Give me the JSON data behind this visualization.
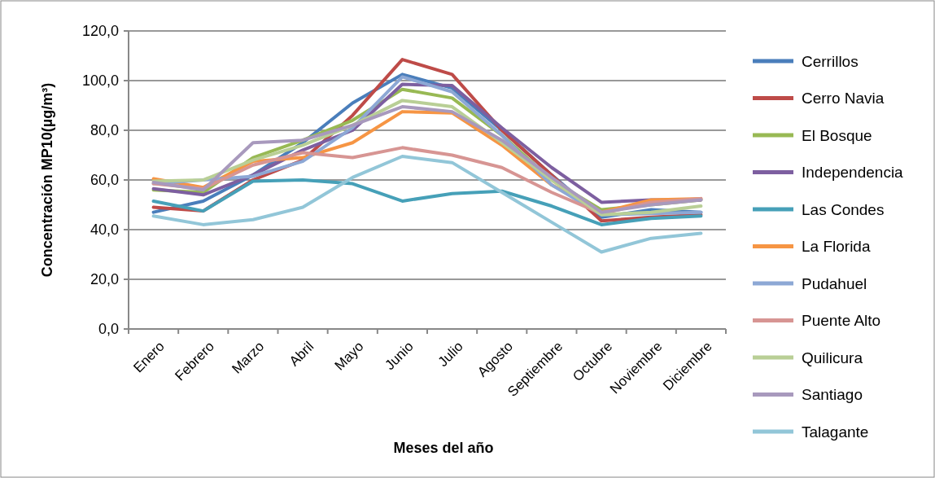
{
  "chart_data": {
    "type": "line",
    "xlabel": "Meses del año",
    "ylabel": "Concentración MP10(µg/m³)",
    "categories": [
      "Enero",
      "Febrero",
      "Marzo",
      "Abril",
      "Mayo",
      "Junio",
      "Julio",
      "Agosto",
      "Septiembre",
      "Octubre",
      "Noviembre",
      "Diciembre"
    ],
    "ylim": [
      0,
      120
    ],
    "yticks": [
      {
        "value": 0,
        "label": "0,0"
      },
      {
        "value": 20,
        "label": "20,0"
      },
      {
        "value": 40,
        "label": "40,0"
      },
      {
        "value": 60,
        "label": "60,0"
      },
      {
        "value": 80,
        "label": "80,0"
      },
      {
        "value": 100,
        "label": "100,0"
      },
      {
        "value": 120,
        "label": "120,0"
      }
    ],
    "grid": "y",
    "legend": "right",
    "marker": "none",
    "line_style": "solid",
    "series": [
      {
        "name": "Cerrillos",
        "color": "#4a7ebb",
        "values": [
          47,
          51.5,
          62,
          75,
          91,
          102.5,
          97,
          80,
          62,
          45,
          48,
          47
        ]
      },
      {
        "name": "Cerro Navia",
        "color": "#be4b48",
        "values": [
          49,
          47.5,
          60,
          68,
          86,
          108.5,
          102.5,
          80,
          62,
          43.5,
          45,
          46
        ]
      },
      {
        "name": "El Bosque",
        "color": "#98b954",
        "values": [
          56,
          55,
          69,
          76,
          84,
          96.5,
          93,
          78,
          60,
          48,
          50,
          52
        ]
      },
      {
        "name": "Independencia",
        "color": "#7d5fa0",
        "values": [
          56.5,
          54,
          62,
          72,
          80,
          98.5,
          98,
          81,
          65,
          51,
          52,
          52
        ]
      },
      {
        "name": "Las Condes",
        "color": "#46a0b8",
        "values": [
          51.5,
          47.5,
          59.5,
          60,
          58.5,
          51.5,
          54.5,
          55.5,
          49.5,
          42,
          44.5,
          45.5
        ]
      },
      {
        "name": "La Florida",
        "color": "#f69544",
        "values": [
          60.5,
          57,
          67.5,
          69,
          75,
          87.5,
          87,
          74,
          58,
          47,
          52,
          52.5
        ]
      },
      {
        "name": "Pudahuel",
        "color": "#8da8d5",
        "values": [
          58.5,
          60,
          61.5,
          67.5,
          81,
          101.5,
          95.5,
          78,
          58,
          46,
          46.5,
          47
        ]
      },
      {
        "name": "Puente Alto",
        "color": "#d79593",
        "values": [
          58.5,
          56.5,
          66,
          71,
          69,
          73,
          70,
          65,
          55,
          46.5,
          51,
          52.5
        ]
      },
      {
        "name": "Quilicura",
        "color": "#b9cf96",
        "values": [
          59.5,
          60,
          68,
          74,
          82,
          92,
          89.5,
          75,
          60,
          46,
          47,
          49.5
        ]
      },
      {
        "name": "Santiago",
        "color": "#a899bd",
        "values": [
          59,
          56,
          75,
          76,
          82,
          89.5,
          87.5,
          76,
          61,
          47,
          50,
          52
        ]
      },
      {
        "name": "Talagante",
        "color": "#92c6d8",
        "values": [
          45.5,
          42,
          44,
          49,
          61,
          69.5,
          67,
          55,
          43,
          31,
          36.5,
          38.5
        ]
      }
    ]
  }
}
